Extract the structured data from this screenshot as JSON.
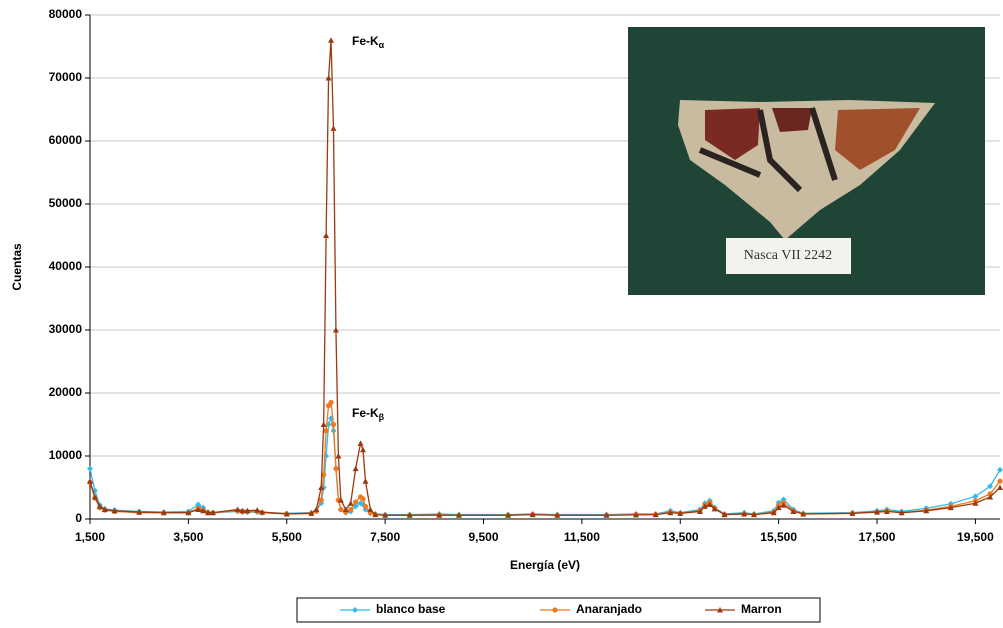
{
  "chart_data": {
    "type": "line",
    "x_label": "Energía (eV)",
    "y_label": "Cuentas",
    "x": [
      1500,
      1600,
      1700,
      1800,
      2000,
      2500,
      3000,
      3500,
      3700,
      3800,
      3900,
      4000,
      4500,
      4600,
      4700,
      4900,
      5000,
      5500,
      6000,
      6100,
      6200,
      6250,
      6300,
      6350,
      6400,
      6450,
      6500,
      6550,
      6600,
      6700,
      6800,
      6900,
      7000,
      7050,
      7100,
      7200,
      7300,
      7500,
      8000,
      8600,
      9000,
      10000,
      10500,
      11000,
      12000,
      12600,
      13000,
      13300,
      13500,
      13900,
      14000,
      14100,
      14200,
      14400,
      14800,
      15000,
      15400,
      15500,
      15600,
      15800,
      16000,
      17000,
      17500,
      17700,
      18000,
      18500,
      19000,
      19500,
      19800,
      20000
    ],
    "series": [
      {
        "name": "blanco base",
        "color": "#33bbee",
        "marker": "diamond",
        "values": [
          8000,
          4500,
          2200,
          1600,
          1400,
          1200,
          1100,
          1200,
          2300,
          1800,
          1100,
          1000,
          1200,
          1100,
          1100,
          1100,
          1000,
          900,
          1000,
          1300,
          2500,
          5000,
          10000,
          15000,
          16000,
          14000,
          8000,
          3000,
          1500,
          1000,
          1200,
          2000,
          2500,
          2300,
          1500,
          900,
          800,
          700,
          700,
          800,
          700,
          700,
          800,
          700,
          700,
          800,
          800,
          1300,
          1000,
          1500,
          2500,
          2900,
          1800,
          800,
          1000,
          800,
          1300,
          2600,
          3100,
          1500,
          900,
          1000,
          1300,
          1500,
          1200,
          1700,
          2400,
          3600,
          5200,
          7800
        ]
      },
      {
        "name": "Anaranjado",
        "color": "#f07820",
        "marker": "circle",
        "values": [
          5800,
          3300,
          1800,
          1400,
          1200,
          1000,
          1000,
          1000,
          1700,
          1400,
          1000,
          1000,
          1300,
          1200,
          1200,
          1200,
          1000,
          800,
          900,
          1200,
          3000,
          7000,
          14000,
          18000,
          18500,
          15000,
          8000,
          3000,
          1500,
          1100,
          1500,
          2700,
          3500,
          3200,
          2000,
          1000,
          700,
          600,
          600,
          650,
          600,
          600,
          700,
          600,
          600,
          700,
          700,
          1100,
          900,
          1300,
          2200,
          2600,
          1700,
          700,
          800,
          700,
          1100,
          2200,
          2600,
          1300,
          800,
          900,
          1100,
          1300,
          1000,
          1400,
          2000,
          2900,
          4000,
          6000
        ]
      },
      {
        "name": "Marron",
        "color": "#9a3a10",
        "marker": "triangle",
        "values": [
          6000,
          3500,
          2000,
          1500,
          1300,
          1100,
          1000,
          1000,
          1500,
          1300,
          1000,
          1000,
          1500,
          1300,
          1300,
          1400,
          1100,
          800,
          900,
          1500,
          5000,
          15000,
          45000,
          70000,
          76000,
          62000,
          30000,
          10000,
          3000,
          1500,
          2500,
          8000,
          12000,
          11000,
          6000,
          1500,
          700,
          600,
          600,
          600,
          600,
          600,
          700,
          600,
          600,
          650,
          700,
          1000,
          900,
          1200,
          2000,
          2300,
          1600,
          700,
          800,
          700,
          1000,
          1800,
          2200,
          1200,
          800,
          900,
          1100,
          1200,
          1000,
          1300,
          1800,
          2500,
          3500,
          5000
        ]
      }
    ],
    "xlim": [
      1500,
      20000
    ],
    "xticks": [
      {
        "value": 1500,
        "label": "1,500"
      },
      {
        "value": 3500,
        "label": "3,500"
      },
      {
        "value": 5500,
        "label": "5,500"
      },
      {
        "value": 7500,
        "label": "7,500"
      },
      {
        "value": 9500,
        "label": "9,500"
      },
      {
        "value": 11500,
        "label": "11,500"
      },
      {
        "value": 13500,
        "label": "13,500"
      },
      {
        "value": 15500,
        "label": "15,500"
      },
      {
        "value": 17500,
        "label": "17,500"
      },
      {
        "value": 19500,
        "label": "19,500"
      }
    ],
    "ylim": [
      0,
      80000
    ],
    "yticks": [
      0,
      10000,
      20000,
      30000,
      40000,
      50000,
      60000,
      70000,
      80000
    ],
    "grid": true,
    "legend": "bottom",
    "annotations": [
      {
        "text": "Fe-K",
        "subscript": "α"
      },
      {
        "text": "Fe-K",
        "subscript": "β"
      }
    ],
    "inset_label": "Nasca VII   2242"
  }
}
